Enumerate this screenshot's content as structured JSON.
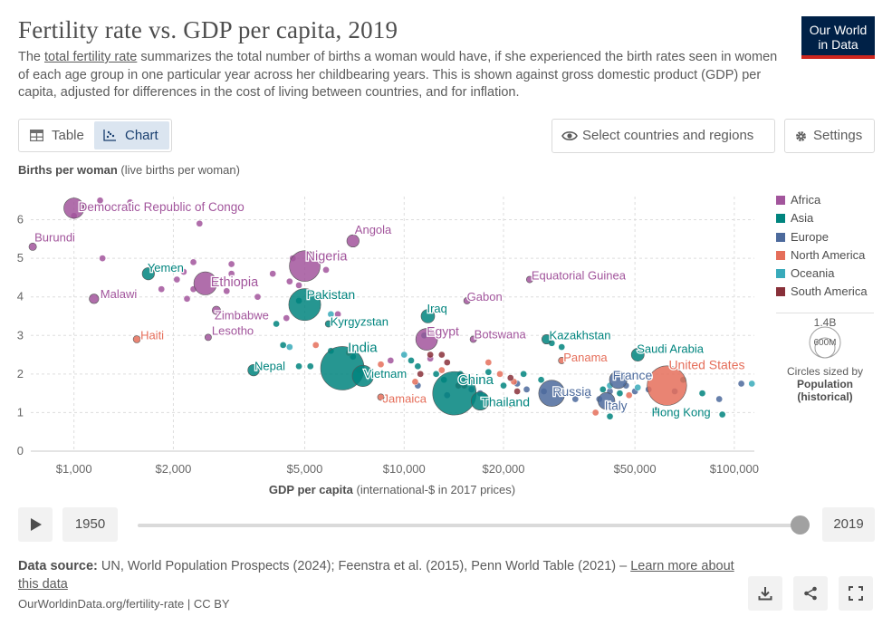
{
  "header": {
    "title": "Fertility rate vs. GDP per capita, 2019",
    "subtitle_pre": "The ",
    "subtitle_link": "total fertility rate",
    "subtitle_post": " summarizes the total number of births a woman would have, if she experienced the birth rates seen in women of each age group in one particular year across her childbearing years. This is shown against gross domestic product (GDP) per capita, adjusted for differences in the cost of living between countries, and for inflation.",
    "logo_line1": "Our World",
    "logo_line2": "in Data"
  },
  "controls": {
    "tab_table": "Table",
    "tab_chart": "Chart",
    "select_label": "Select countries and regions",
    "settings_label": "Settings"
  },
  "axes": {
    "y_title_bold": "Births per woman",
    "y_title_rest": " (live births per woman)",
    "x_title_bold": "GDP per capita",
    "x_title_rest": " (international-$ in 2017 prices)"
  },
  "legend": {
    "items": [
      {
        "label": "Africa",
        "color": "#a2559c"
      },
      {
        "label": "Asia",
        "color": "#00847e"
      },
      {
        "label": "Europe",
        "color": "#4c6a9c"
      },
      {
        "label": "North America",
        "color": "#e56e5a"
      },
      {
        "label": "Oceania",
        "color": "#38aaba"
      },
      {
        "label": "South America",
        "color": "#883039"
      }
    ],
    "size_max": "1.4B",
    "size_mid": "600M",
    "size_caption": "Circles sized by",
    "size_caption_bold1": "Population",
    "size_caption_bold2": "(historical)"
  },
  "timeline": {
    "start_year": "1950",
    "end_year": "2019",
    "position": 1.0
  },
  "footer": {
    "source_bold": "Data source:",
    "source_text": " UN, World Population Prospects (2024); Feenstra et al. (2015), Penn World Table (2021) – ",
    "source_link": "Learn more about this data",
    "license": "OurWorldinData.org/fertility-rate | CC BY"
  },
  "chart_data": {
    "type": "scatter",
    "title": "Fertility rate vs. GDP per capita, 2019",
    "xlabel": "GDP per capita (international-$ in 2017 prices)",
    "ylabel": "Births per woman (live births per woman)",
    "xscale": "log",
    "xlim": [
      740,
      115000
    ],
    "ylim": [
      0,
      6.6
    ],
    "xticks": [
      {
        "v": 1000,
        "label": "$1,000"
      },
      {
        "v": 2000,
        "label": "$2,000"
      },
      {
        "v": 5000,
        "label": "$5,000"
      },
      {
        "v": 10000,
        "label": "$10,000"
      },
      {
        "v": 20000,
        "label": "$20,000"
      },
      {
        "v": 50000,
        "label": "$50,000"
      },
      {
        "v": 100000,
        "label": "$100,000"
      }
    ],
    "yticks": [
      0,
      1,
      2,
      3,
      4,
      5,
      6
    ],
    "labeled_points": [
      {
        "name": "Democratic Republic of Congo",
        "x": 1000,
        "y": 6.3,
        "pop": 87,
        "region": "Africa"
      },
      {
        "name": "Burundi",
        "x": 750,
        "y": 5.3,
        "pop": 12,
        "region": "Africa"
      },
      {
        "name": "Malawi",
        "x": 1150,
        "y": 3.95,
        "pop": 19,
        "region": "Africa"
      },
      {
        "name": "Yemen",
        "x": 1680,
        "y": 4.6,
        "pop": 32,
        "region": "Asia"
      },
      {
        "name": "Haiti",
        "x": 1550,
        "y": 2.9,
        "pop": 11,
        "region": "North America"
      },
      {
        "name": "Ethiopia",
        "x": 2500,
        "y": 4.35,
        "pop": 112,
        "region": "Africa"
      },
      {
        "name": "Zimbabwe",
        "x": 2700,
        "y": 3.65,
        "pop": 15,
        "region": "Africa"
      },
      {
        "name": "Lesotho",
        "x": 2550,
        "y": 2.95,
        "pop": 2,
        "region": "Africa"
      },
      {
        "name": "Nigeria",
        "x": 5000,
        "y": 4.8,
        "pop": 200,
        "region": "Africa"
      },
      {
        "name": "Angola",
        "x": 7000,
        "y": 5.45,
        "pop": 32,
        "region": "Africa"
      },
      {
        "name": "Pakistan",
        "x": 5000,
        "y": 3.8,
        "pop": 216,
        "region": "Asia"
      },
      {
        "name": "Kyrgyzstan",
        "x": 5900,
        "y": 3.3,
        "pop": 6,
        "region": "Asia"
      },
      {
        "name": "Nepal",
        "x": 3500,
        "y": 2.1,
        "pop": 28,
        "region": "Asia"
      },
      {
        "name": "India",
        "x": 6500,
        "y": 2.15,
        "pop": 1380,
        "region": "Asia"
      },
      {
        "name": "Vietnam",
        "x": 7500,
        "y": 1.95,
        "pop": 96,
        "region": "Asia"
      },
      {
        "name": "Jamaica",
        "x": 8500,
        "y": 1.4,
        "pop": 3,
        "region": "North America"
      },
      {
        "name": "Iraq",
        "x": 11800,
        "y": 3.5,
        "pop": 39,
        "region": "Asia"
      },
      {
        "name": "Egypt",
        "x": 11700,
        "y": 2.9,
        "pop": 100,
        "region": "Africa"
      },
      {
        "name": "Gabon",
        "x": 15500,
        "y": 3.9,
        "pop": 2,
        "region": "Africa"
      },
      {
        "name": "Botswana",
        "x": 16200,
        "y": 2.9,
        "pop": 2,
        "region": "Africa"
      },
      {
        "name": "China",
        "x": 14200,
        "y": 1.5,
        "pop": 1420,
        "region": "Asia"
      },
      {
        "name": "Thailand",
        "x": 17000,
        "y": 1.3,
        "pop": 70,
        "region": "Asia"
      },
      {
        "name": "Equatorial Guinea",
        "x": 24000,
        "y": 4.45,
        "pop": 1,
        "region": "Africa"
      },
      {
        "name": "Kazakhstan",
        "x": 27000,
        "y": 2.9,
        "pop": 19,
        "region": "Asia"
      },
      {
        "name": "Panama",
        "x": 30000,
        "y": 2.35,
        "pop": 4,
        "region": "North America"
      },
      {
        "name": "Russia",
        "x": 28000,
        "y": 1.5,
        "pop": 145,
        "region": "Europe"
      },
      {
        "name": "Saudi Arabia",
        "x": 51000,
        "y": 2.5,
        "pop": 35,
        "region": "Asia"
      },
      {
        "name": "France",
        "x": 44500,
        "y": 1.85,
        "pop": 65,
        "region": "Europe"
      },
      {
        "name": "Italy",
        "x": 41000,
        "y": 1.3,
        "pop": 60,
        "region": "Europe"
      },
      {
        "name": "United States",
        "x": 62500,
        "y": 1.7,
        "pop": 330,
        "region": "North America"
      },
      {
        "name": "Hong Kong",
        "x": 58000,
        "y": 1.05,
        "pop": 7,
        "region": "Asia"
      }
    ],
    "other_points": [
      {
        "x": 1200,
        "y": 6.5,
        "region": "Africa"
      },
      {
        "x": 1480,
        "y": 6.45,
        "region": "Africa"
      },
      {
        "x": 2400,
        "y": 5.9,
        "region": "Africa"
      },
      {
        "x": 1220,
        "y": 5.0,
        "region": "Africa"
      },
      {
        "x": 2300,
        "y": 4.9,
        "region": "Africa"
      },
      {
        "x": 3000,
        "y": 4.85,
        "region": "Africa"
      },
      {
        "x": 2150,
        "y": 4.65,
        "region": "Africa"
      },
      {
        "x": 2050,
        "y": 4.45,
        "region": "Africa"
      },
      {
        "x": 1840,
        "y": 4.2,
        "region": "Africa"
      },
      {
        "x": 2300,
        "y": 4.2,
        "region": "Africa"
      },
      {
        "x": 3000,
        "y": 4.6,
        "region": "Africa"
      },
      {
        "x": 3600,
        "y": 4.0,
        "region": "Africa"
      },
      {
        "x": 4000,
        "y": 4.6,
        "region": "Africa"
      },
      {
        "x": 4500,
        "y": 4.4,
        "region": "Africa"
      },
      {
        "x": 4800,
        "y": 4.3,
        "region": "Africa"
      },
      {
        "x": 2200,
        "y": 3.95,
        "region": "Africa"
      },
      {
        "x": 2900,
        "y": 4.15,
        "region": "Africa"
      },
      {
        "x": 4400,
        "y": 3.45,
        "region": "Africa"
      },
      {
        "x": 1000,
        "y": 6.1,
        "region": "Africa"
      },
      {
        "x": 4600,
        "y": 5.0,
        "region": "Africa"
      },
      {
        "x": 5800,
        "y": 4.7,
        "region": "Africa"
      },
      {
        "x": 6300,
        "y": 3.55,
        "region": "Africa"
      },
      {
        "x": 9100,
        "y": 2.35,
        "region": "Africa"
      },
      {
        "x": 12000,
        "y": 2.4,
        "region": "Africa"
      },
      {
        "x": 4800,
        "y": 3.9,
        "region": "Asia"
      },
      {
        "x": 4100,
        "y": 3.3,
        "region": "Asia"
      },
      {
        "x": 4300,
        "y": 2.75,
        "region": "Asia"
      },
      {
        "x": 4800,
        "y": 2.2,
        "region": "Asia"
      },
      {
        "x": 5200,
        "y": 2.2,
        "region": "Asia"
      },
      {
        "x": 6000,
        "y": 2.6,
        "region": "Asia"
      },
      {
        "x": 7000,
        "y": 2.45,
        "region": "Asia"
      },
      {
        "x": 10500,
        "y": 2.35,
        "region": "Asia"
      },
      {
        "x": 11000,
        "y": 2.2,
        "region": "Asia"
      },
      {
        "x": 12500,
        "y": 2.0,
        "region": "Asia"
      },
      {
        "x": 13200,
        "y": 1.85,
        "region": "Asia"
      },
      {
        "x": 14800,
        "y": 2.0,
        "region": "Asia"
      },
      {
        "x": 15500,
        "y": 1.85,
        "region": "Asia"
      },
      {
        "x": 18000,
        "y": 2.05,
        "region": "Asia"
      },
      {
        "x": 20000,
        "y": 1.7,
        "region": "Asia"
      },
      {
        "x": 26000,
        "y": 1.85,
        "region": "Asia"
      },
      {
        "x": 28000,
        "y": 2.8,
        "region": "Asia"
      },
      {
        "x": 30000,
        "y": 2.7,
        "region": "Asia"
      },
      {
        "x": 40000,
        "y": 1.6,
        "region": "Asia"
      },
      {
        "x": 45000,
        "y": 1.5,
        "region": "Asia"
      },
      {
        "x": 42000,
        "y": 0.9,
        "region": "Asia"
      },
      {
        "x": 70000,
        "y": 1.85,
        "region": "Asia"
      },
      {
        "x": 80000,
        "y": 1.5,
        "region": "Asia"
      },
      {
        "x": 92000,
        "y": 0.95,
        "region": "Asia"
      },
      {
        "x": 23000,
        "y": 2.0,
        "region": "Asia"
      },
      {
        "x": 17500,
        "y": 1.4,
        "region": "Asia"
      },
      {
        "x": 11500,
        "y": 3.0,
        "region": "Asia"
      },
      {
        "x": 13500,
        "y": 1.45,
        "region": "Europe"
      },
      {
        "x": 16000,
        "y": 1.6,
        "region": "Europe"
      },
      {
        "x": 22000,
        "y": 1.75,
        "region": "Europe"
      },
      {
        "x": 23500,
        "y": 1.6,
        "region": "Europe"
      },
      {
        "x": 26500,
        "y": 1.55,
        "region": "Europe"
      },
      {
        "x": 30000,
        "y": 1.45,
        "region": "Europe"
      },
      {
        "x": 33000,
        "y": 1.35,
        "region": "Europe"
      },
      {
        "x": 36000,
        "y": 1.45,
        "region": "Europe"
      },
      {
        "x": 39000,
        "y": 1.35,
        "region": "Europe"
      },
      {
        "x": 42000,
        "y": 1.55,
        "region": "Europe"
      },
      {
        "x": 47000,
        "y": 1.7,
        "region": "Europe"
      },
      {
        "x": 50000,
        "y": 1.55,
        "region": "Europe"
      },
      {
        "x": 55000,
        "y": 1.6,
        "region": "Europe"
      },
      {
        "x": 66000,
        "y": 1.55,
        "region": "Europe"
      },
      {
        "x": 90000,
        "y": 1.35,
        "region": "Europe"
      },
      {
        "x": 105000,
        "y": 1.75,
        "region": "Europe"
      },
      {
        "x": 11000,
        "y": 1.7,
        "region": "Europe"
      },
      {
        "x": 17000,
        "y": 1.5,
        "region": "Europe"
      },
      {
        "x": 7300,
        "y": 2.1,
        "region": "North America"
      },
      {
        "x": 8500,
        "y": 2.25,
        "region": "North America"
      },
      {
        "x": 6800,
        "y": 2.55,
        "region": "North America"
      },
      {
        "x": 19500,
        "y": 2.0,
        "region": "North America"
      },
      {
        "x": 21000,
        "y": 1.2,
        "region": "North America"
      },
      {
        "x": 21500,
        "y": 1.8,
        "region": "North America"
      },
      {
        "x": 18000,
        "y": 2.3,
        "region": "North America"
      },
      {
        "x": 13000,
        "y": 2.1,
        "region": "North America"
      },
      {
        "x": 38000,
        "y": 1.0,
        "region": "North America"
      },
      {
        "x": 48000,
        "y": 1.45,
        "region": "North America"
      },
      {
        "x": 5400,
        "y": 2.75,
        "region": "North America"
      },
      {
        "x": 10800,
        "y": 1.8,
        "region": "North America"
      },
      {
        "x": 6000,
        "y": 3.55,
        "region": "Oceania"
      },
      {
        "x": 4500,
        "y": 2.7,
        "region": "Oceania"
      },
      {
        "x": 10000,
        "y": 2.5,
        "region": "Oceania"
      },
      {
        "x": 51000,
        "y": 1.65,
        "region": "Oceania"
      },
      {
        "x": 42000,
        "y": 1.7,
        "region": "Oceania"
      },
      {
        "x": 113000,
        "y": 1.75,
        "region": "Oceania"
      },
      {
        "x": 7800,
        "y": 2.7,
        "region": "South America"
      },
      {
        "x": 12000,
        "y": 2.5,
        "region": "South America"
      },
      {
        "x": 13500,
        "y": 2.3,
        "region": "South America"
      },
      {
        "x": 14600,
        "y": 1.7,
        "region": "South America"
      },
      {
        "x": 15200,
        "y": 1.7,
        "region": "South America"
      },
      {
        "x": 21000,
        "y": 1.9,
        "region": "South America"
      },
      {
        "x": 22000,
        "y": 1.55,
        "region": "South America"
      },
      {
        "x": 13000,
        "y": 2.5,
        "region": "South America"
      },
      {
        "x": 11200,
        "y": 2.0,
        "region": "South America"
      }
    ]
  }
}
